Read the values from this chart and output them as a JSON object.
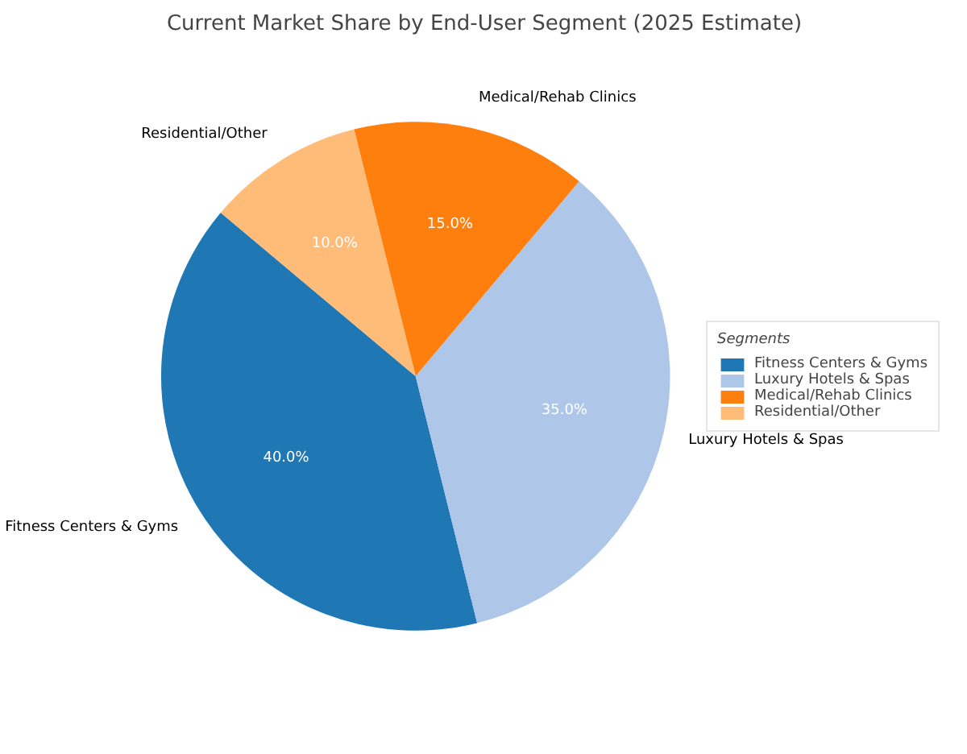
{
  "chart_data": {
    "type": "pie",
    "title": "Current Market Share by End-User Segment (2025 Estimate)",
    "categories": [
      "Fitness Centers & Gyms",
      "Luxury Hotels & Spas",
      "Medical/Rehab Clinics",
      "Residential/Other"
    ],
    "values": [
      40,
      35,
      15,
      10
    ],
    "colors": [
      "#1f77b4",
      "#aec7e8",
      "#ff7f0e",
      "#ffbb78"
    ],
    "value_labels": [
      "40.0%",
      "35.0%",
      "15.0%",
      "10.0%"
    ],
    "legend_title": "Segments",
    "legend": "right"
  }
}
